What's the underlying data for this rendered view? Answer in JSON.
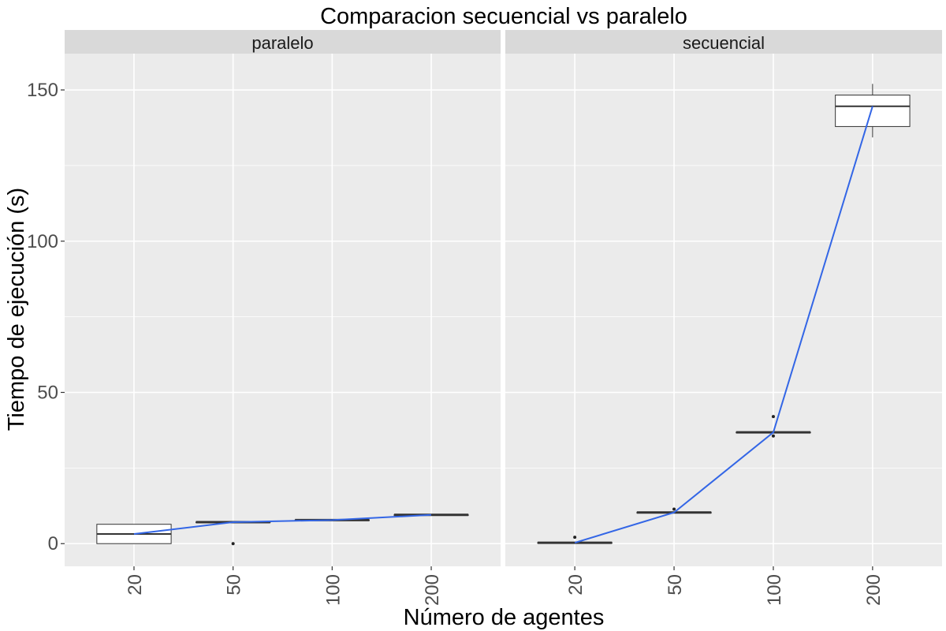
{
  "chart_data": {
    "type": "boxplot",
    "title": "Comparacion secuencial vs paralelo",
    "xlabel": "Número de agentes",
    "ylabel": "Tiempo de ejecución (s)",
    "categories": [
      "20",
      "50",
      "100",
      "200"
    ],
    "ylim": [
      -7.5,
      162
    ],
    "yticks": [
      0,
      50,
      100,
      150
    ],
    "grid": true,
    "facets": [
      {
        "name": "paralelo",
        "boxes": [
          {
            "x": "20",
            "min": 0.0,
            "q1": 0.0,
            "median": 3.2,
            "q3": 6.4,
            "max": 6.4
          },
          {
            "x": "50",
            "min": 7.1,
            "q1": 7.1,
            "median": 7.1,
            "q3": 7.1,
            "max": 7.1
          },
          {
            "x": "100",
            "min": 7.8,
            "q1": 7.8,
            "median": 7.8,
            "q3": 7.8,
            "max": 7.8
          },
          {
            "x": "200",
            "min": 9.5,
            "q1": 9.5,
            "median": 9.5,
            "q3": 9.5,
            "max": 9.5
          }
        ],
        "outliers": [
          {
            "x": "50",
            "y": 0.0
          }
        ],
        "line": {
          "name": "mean",
          "values": [
            3.2,
            7.1,
            7.8,
            9.5
          ]
        }
      },
      {
        "name": "secuencial",
        "boxes": [
          {
            "x": "20",
            "min": 0.3,
            "q1": 0.3,
            "median": 0.3,
            "q3": 0.3,
            "max": 0.3
          },
          {
            "x": "50",
            "min": 10.3,
            "q1": 10.3,
            "median": 10.3,
            "q3": 10.3,
            "max": 10.3
          },
          {
            "x": "100",
            "min": 36.8,
            "q1": 36.8,
            "median": 36.8,
            "q3": 36.8,
            "max": 36.8
          },
          {
            "x": "200",
            "min": 134.3,
            "q1": 137.9,
            "median": 144.6,
            "q3": 148.3,
            "max": 152.0
          }
        ],
        "outliers": [
          {
            "x": "20",
            "y": 2.1
          },
          {
            "x": "50",
            "y": 11.4
          },
          {
            "x": "100",
            "y": 42.0
          },
          {
            "x": "100",
            "y": 35.6
          }
        ],
        "line": {
          "name": "mean",
          "values": [
            0.3,
            10.3,
            36.8,
            144.6
          ]
        }
      }
    ],
    "colors": {
      "panel_bg": "#ebebeb",
      "strip_bg": "#d9d9d9",
      "grid": "#ffffff",
      "line": "#3366e6",
      "box_fill": "#ffffff",
      "box_stroke": "#333333",
      "point": "#222222",
      "tick_text": "#4d4d4d"
    }
  }
}
